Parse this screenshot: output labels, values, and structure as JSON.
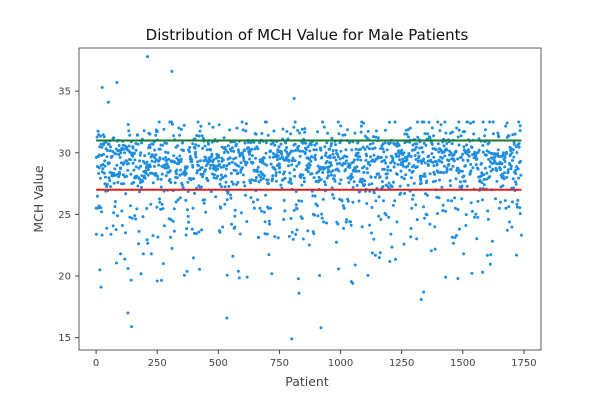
{
  "chart_data": {
    "type": "scatter",
    "title": "Distribution of MCH Value for Male Patients",
    "xlabel": "Patient",
    "ylabel": "MCH Value",
    "xlim": [
      -70,
      1820
    ],
    "ylim": [
      14,
      38.5
    ],
    "xticks": [
      0,
      250,
      500,
      750,
      1000,
      1250,
      1500,
      1750
    ],
    "yticks": [
      15,
      20,
      25,
      30,
      35
    ],
    "grid": false,
    "legend": "none",
    "n_points": 1740,
    "point_color": "#1f8ee0",
    "reference_lines": [
      {
        "y": 31,
        "x_range": [
          0,
          1740
        ],
        "color": "#1a7a2e"
      },
      {
        "y": 27,
        "x_range": [
          0,
          1740
        ],
        "color": "#e02020"
      }
    ],
    "outliers": [
      {
        "x": 210,
        "y": 37.8
      },
      {
        "x": 310,
        "y": 36.6
      },
      {
        "x": 85,
        "y": 35.7
      },
      {
        "x": 25,
        "y": 35.3
      },
      {
        "x": 810,
        "y": 34.4
      },
      {
        "x": 50,
        "y": 34.1
      },
      {
        "x": 130,
        "y": 17.0
      },
      {
        "x": 145,
        "y": 15.9
      },
      {
        "x": 535,
        "y": 16.6
      },
      {
        "x": 920,
        "y": 15.8
      },
      {
        "x": 800,
        "y": 14.9
      },
      {
        "x": 1330,
        "y": 18.1
      },
      {
        "x": 830,
        "y": 18.6
      },
      {
        "x": 1340,
        "y": 18.7
      },
      {
        "x": 20,
        "y": 19.1
      },
      {
        "x": 15,
        "y": 20.5
      },
      {
        "x": 100,
        "y": 21.8
      },
      {
        "x": 250,
        "y": 19.6
      },
      {
        "x": 1050,
        "y": 19.4
      },
      {
        "x": 1430,
        "y": 19.9
      },
      {
        "x": 1480,
        "y": 19.8
      },
      {
        "x": 1720,
        "y": 21.7
      }
    ]
  }
}
